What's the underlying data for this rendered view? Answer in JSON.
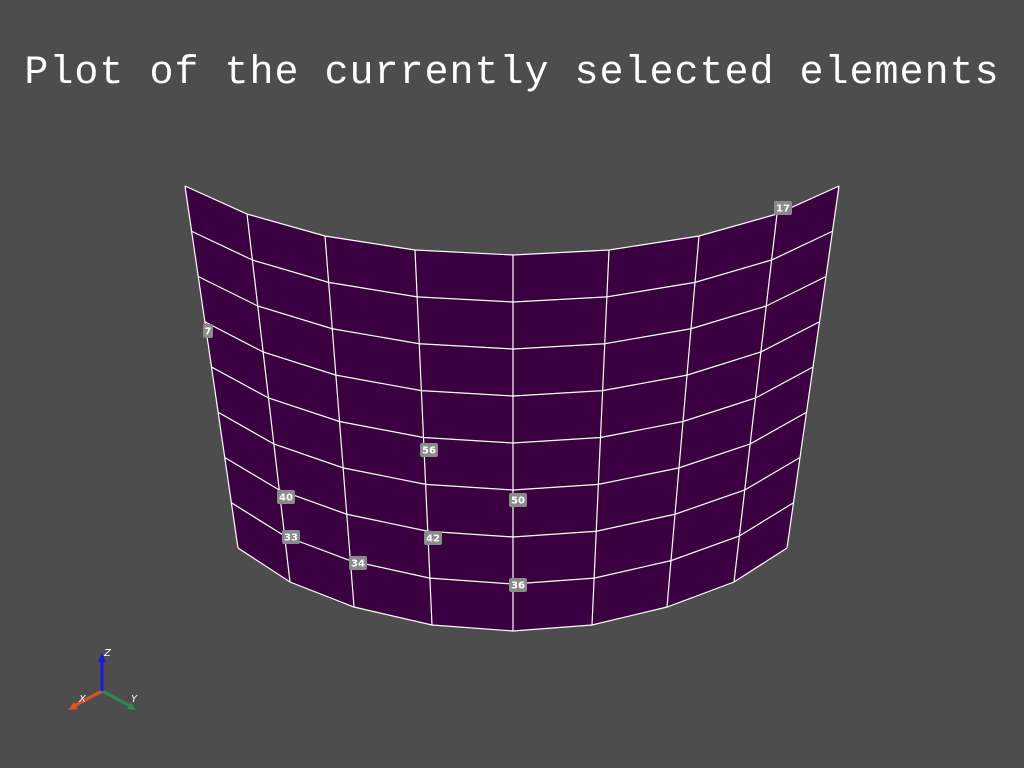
{
  "title": "Plot of the currently selected elements",
  "mesh": {
    "face_color": "#3a003f",
    "edge_color": "#ffffff"
  },
  "element_labels": [
    "17",
    "7",
    "56",
    "40",
    "50",
    "33",
    "42",
    "34",
    "36"
  ],
  "axes": {
    "x_label": "X",
    "y_label": "Y",
    "z_label": "Z",
    "x_color": "#d9532c",
    "y_color": "#2f8a4d",
    "z_color": "#1a1ad0"
  }
}
